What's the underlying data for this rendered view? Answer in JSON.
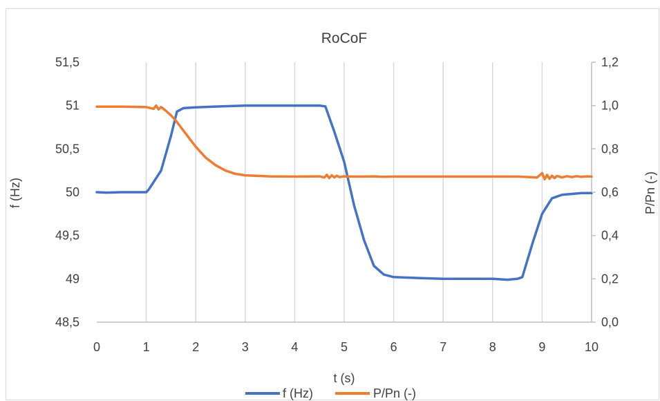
{
  "chart_data": {
    "type": "line",
    "title": "RoCoF",
    "xlabel": "t (s)",
    "ylabel": "f (Hz)",
    "y2label": "P/Pn (-)",
    "xlim": [
      0,
      10
    ],
    "ylim": [
      48.5,
      51.5
    ],
    "y2lim": [
      0.0,
      1.2
    ],
    "x_ticks": [
      "0",
      "1",
      "2",
      "3",
      "4",
      "5",
      "6",
      "7",
      "8",
      "9",
      "10"
    ],
    "y_ticks": [
      "48,5",
      "49",
      "49,5",
      "50",
      "50,5",
      "51",
      "51,5"
    ],
    "y2_ticks": [
      "0,0",
      "0,2",
      "0,4",
      "0,6",
      "0,8",
      "1,0",
      "1,2"
    ],
    "grid": "vertical",
    "legend_position": "bottom",
    "series": [
      {
        "name": "f (Hz)",
        "axis": "left",
        "color": "#4472C4",
        "x": [
          0,
          0.2,
          0.5,
          1.0,
          1.05,
          1.3,
          1.5,
          1.62,
          1.75,
          2.0,
          2.5,
          3.0,
          3.5,
          4.0,
          4.5,
          4.62,
          4.8,
          5.0,
          5.2,
          5.4,
          5.6,
          5.8,
          6.0,
          6.5,
          7.0,
          7.5,
          8.0,
          8.3,
          8.5,
          8.6,
          8.8,
          9.0,
          9.2,
          9.4,
          9.6,
          9.8,
          10.0
        ],
        "y": [
          50.0,
          49.995,
          50.0,
          50.0,
          50.03,
          50.25,
          50.65,
          50.93,
          50.97,
          50.98,
          50.99,
          51.0,
          51.0,
          51.0,
          51.0,
          50.99,
          50.7,
          50.35,
          49.85,
          49.45,
          49.15,
          49.05,
          49.02,
          49.01,
          49.0,
          49.0,
          49.0,
          48.99,
          49.0,
          49.02,
          49.4,
          49.75,
          49.93,
          49.97,
          49.98,
          49.99,
          49.99
        ]
      },
      {
        "name": "P/Pn (-)",
        "axis": "right",
        "color": "#ED7D31",
        "x": [
          0,
          0.5,
          1.0,
          1.15,
          1.2,
          1.25,
          1.3,
          1.35,
          1.4,
          1.5,
          1.6,
          1.7,
          1.8,
          1.9,
          2.0,
          2.2,
          2.4,
          2.6,
          2.8,
          3.0,
          3.5,
          4.0,
          4.5,
          4.6,
          4.65,
          4.7,
          4.75,
          4.8,
          4.85,
          4.9,
          5.0,
          5.2,
          5.4,
          5.6,
          5.8,
          6.0,
          6.5,
          7.0,
          7.5,
          8.0,
          8.5,
          8.9,
          9.0,
          9.05,
          9.1,
          9.15,
          9.2,
          9.25,
          9.3,
          9.4,
          9.5,
          9.6,
          9.7,
          9.8,
          9.9,
          10.0
        ],
        "y": [
          0.995,
          0.995,
          0.993,
          0.985,
          1.0,
          0.982,
          0.993,
          0.985,
          0.975,
          0.955,
          0.93,
          0.9,
          0.87,
          0.84,
          0.81,
          0.76,
          0.725,
          0.7,
          0.685,
          0.678,
          0.673,
          0.672,
          0.673,
          0.668,
          0.68,
          0.665,
          0.678,
          0.668,
          0.676,
          0.67,
          0.673,
          0.672,
          0.672,
          0.673,
          0.671,
          0.672,
          0.672,
          0.672,
          0.672,
          0.672,
          0.672,
          0.668,
          0.688,
          0.66,
          0.68,
          0.662,
          0.676,
          0.665,
          0.675,
          0.668,
          0.674,
          0.67,
          0.674,
          0.671,
          0.673,
          0.672
        ]
      }
    ]
  }
}
